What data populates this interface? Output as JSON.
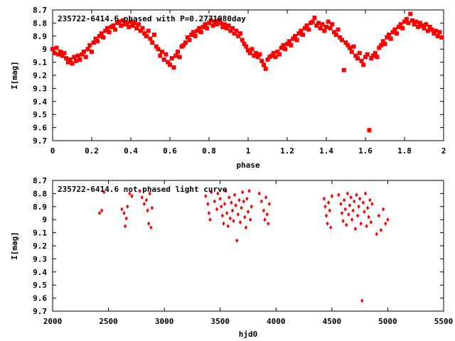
{
  "chart_data": [
    {
      "type": "scatter",
      "title": "235722-6414.6 phased with P=0.2771080day",
      "xlabel": "phase",
      "ylabel": "I[mag]",
      "xlim": [
        0,
        2
      ],
      "ylim": [
        9.7,
        8.7
      ],
      "y_inverted": true,
      "x_ticks": [
        0,
        0.2,
        0.4,
        0.6,
        0.8,
        1,
        1.2,
        1.4,
        1.6,
        1.8,
        2
      ],
      "x_tick_labels": [
        "0",
        "0.2",
        "0.4",
        "0.6",
        "0.8",
        "1",
        "1.2",
        "1.4",
        "1.6",
        "1.8",
        "2"
      ],
      "y_ticks": [
        8.7,
        8.8,
        8.9,
        9,
        9.1,
        9.2,
        9.3,
        9.4,
        9.5,
        9.6,
        9.7
      ],
      "y_tick_labels": [
        "8.7",
        "8.8",
        "8.9",
        "9",
        "9.1",
        "9.2",
        "9.3",
        "9.4",
        "9.5",
        "9.6",
        "9.7"
      ],
      "grid": false,
      "marker": "filled-square",
      "color": "#ff0000",
      "points": [
        [
          0.0,
          9.0
        ],
        [
          0.01,
          9.03
        ],
        [
          0.02,
          8.99
        ],
        [
          0.03,
          9.04
        ],
        [
          0.04,
          9.02
        ],
        [
          0.05,
          9.05
        ],
        [
          0.06,
          9.03
        ],
        [
          0.07,
          9.07
        ],
        [
          0.08,
          9.1
        ],
        [
          0.09,
          9.08
        ],
        [
          0.1,
          9.11
        ],
        [
          0.11,
          9.06
        ],
        [
          0.12,
          9.09
        ],
        [
          0.13,
          9.05
        ],
        [
          0.14,
          9.08
        ],
        [
          0.15,
          9.04
        ],
        [
          0.16,
          9.02
        ],
        [
          0.17,
          9.06
        ],
        [
          0.18,
          9.0
        ],
        [
          0.19,
          8.97
        ],
        [
          0.2,
          9.02
        ],
        [
          0.21,
          8.95
        ],
        [
          0.22,
          8.92
        ],
        [
          0.23,
          8.94
        ],
        [
          0.24,
          8.9
        ],
        [
          0.25,
          8.88
        ],
        [
          0.26,
          8.91
        ],
        [
          0.27,
          8.86
        ],
        [
          0.28,
          8.84
        ],
        [
          0.29,
          8.87
        ],
        [
          0.3,
          8.83
        ],
        [
          0.31,
          8.82
        ],
        [
          0.32,
          8.85
        ],
        [
          0.33,
          8.8
        ],
        [
          0.34,
          8.79
        ],
        [
          0.35,
          8.82
        ],
        [
          0.36,
          8.78
        ],
        [
          0.37,
          8.81
        ],
        [
          0.38,
          8.8
        ],
        [
          0.39,
          8.83
        ],
        [
          0.4,
          8.79
        ],
        [
          0.41,
          8.82
        ],
        [
          0.42,
          8.8
        ],
        [
          0.43,
          8.84
        ],
        [
          0.44,
          8.81
        ],
        [
          0.45,
          8.86
        ],
        [
          0.46,
          8.84
        ],
        [
          0.47,
          8.88
        ],
        [
          0.48,
          8.9
        ],
        [
          0.49,
          8.86
        ],
        [
          0.5,
          8.92
        ],
        [
          0.51,
          8.95
        ],
        [
          0.52,
          8.89
        ],
        [
          0.53,
          8.98
        ],
        [
          0.54,
          9.0
        ],
        [
          0.55,
          9.05
        ],
        [
          0.56,
          9.02
        ],
        [
          0.57,
          9.08
        ],
        [
          0.58,
          9.04
        ],
        [
          0.59,
          9.1
        ],
        [
          0.6,
          9.12
        ],
        [
          0.61,
          9.07
        ],
        [
          0.62,
          9.14
        ],
        [
          0.63,
          9.05
        ],
        [
          0.64,
          9.02
        ],
        [
          0.65,
          9.06
        ],
        [
          0.66,
          8.98
        ],
        [
          0.67,
          8.97
        ],
        [
          0.68,
          8.95
        ],
        [
          0.69,
          8.91
        ],
        [
          0.7,
          8.93
        ],
        [
          0.71,
          8.89
        ],
        [
          0.72,
          8.87
        ],
        [
          0.73,
          8.9
        ],
        [
          0.74,
          8.86
        ],
        [
          0.75,
          8.84
        ],
        [
          0.76,
          8.87
        ],
        [
          0.77,
          8.83
        ],
        [
          0.78,
          8.81
        ],
        [
          0.79,
          8.84
        ],
        [
          0.8,
          8.8
        ],
        [
          0.81,
          8.78
        ],
        [
          0.82,
          8.82
        ],
        [
          0.83,
          8.79
        ],
        [
          0.84,
          8.81
        ],
        [
          0.85,
          8.78
        ],
        [
          0.86,
          8.8
        ],
        [
          0.87,
          8.83
        ],
        [
          0.88,
          8.81
        ],
        [
          0.89,
          8.84
        ],
        [
          0.9,
          8.82
        ],
        [
          0.91,
          8.86
        ],
        [
          0.92,
          8.84
        ],
        [
          0.93,
          8.88
        ],
        [
          0.94,
          8.86
        ],
        [
          0.95,
          8.9
        ],
        [
          0.96,
          8.88
        ],
        [
          0.97,
          8.93
        ],
        [
          0.98,
          8.96
        ],
        [
          0.99,
          8.98
        ],
        [
          1.0,
          9.01
        ],
        [
          1.01,
          9.03
        ],
        [
          1.02,
          9.0
        ],
        [
          1.03,
          9.05
        ],
        [
          1.04,
          9.03
        ],
        [
          1.05,
          9.06
        ],
        [
          1.06,
          9.04
        ],
        [
          1.07,
          9.09
        ],
        [
          1.08,
          9.12
        ],
        [
          1.09,
          9.15
        ],
        [
          1.1,
          9.08
        ],
        [
          1.11,
          9.06
        ],
        [
          1.12,
          9.05
        ],
        [
          1.13,
          9.03
        ],
        [
          1.14,
          9.06
        ],
        [
          1.15,
          9.02
        ],
        [
          1.16,
          9.04
        ],
        [
          1.17,
          8.99
        ],
        [
          1.18,
          8.97
        ],
        [
          1.19,
          9.0
        ],
        [
          1.2,
          8.96
        ],
        [
          1.21,
          8.94
        ],
        [
          1.22,
          8.97
        ],
        [
          1.23,
          8.92
        ],
        [
          1.24,
          8.9
        ],
        [
          1.25,
          8.93
        ],
        [
          1.26,
          8.88
        ],
        [
          1.27,
          8.86
        ],
        [
          1.28,
          8.89
        ],
        [
          1.29,
          8.84
        ],
        [
          1.3,
          8.82
        ],
        [
          1.31,
          8.85
        ],
        [
          1.32,
          8.8
        ],
        [
          1.33,
          8.79
        ],
        [
          1.34,
          8.76
        ],
        [
          1.35,
          8.82
        ],
        [
          1.36,
          8.8
        ],
        [
          1.37,
          8.84
        ],
        [
          1.38,
          8.81
        ],
        [
          1.39,
          8.86
        ],
        [
          1.4,
          8.83
        ],
        [
          1.41,
          8.79
        ],
        [
          1.42,
          8.84
        ],
        [
          1.43,
          8.81
        ],
        [
          1.44,
          8.87
        ],
        [
          1.45,
          8.89
        ],
        [
          1.46,
          8.85
        ],
        [
          1.47,
          8.91
        ],
        [
          1.48,
          8.93
        ],
        [
          1.49,
          9.16
        ],
        [
          1.5,
          8.95
        ],
        [
          1.51,
          8.97
        ],
        [
          1.52,
          8.99
        ],
        [
          1.53,
          9.02
        ],
        [
          1.54,
          8.98
        ],
        [
          1.55,
          9.05
        ],
        [
          1.56,
          9.07
        ],
        [
          1.57,
          9.03
        ],
        [
          1.58,
          9.09
        ],
        [
          1.59,
          9.12
        ],
        [
          1.6,
          9.06
        ],
        [
          1.61,
          9.04
        ],
        [
          1.62,
          9.62
        ],
        [
          1.63,
          9.07
        ],
        [
          1.64,
          9.05
        ],
        [
          1.65,
          9.03
        ],
        [
          1.66,
          9.06
        ],
        [
          1.67,
          8.99
        ],
        [
          1.68,
          8.97
        ],
        [
          1.69,
          8.94
        ],
        [
          1.7,
          8.96
        ],
        [
          1.71,
          8.91
        ],
        [
          1.72,
          8.89
        ],
        [
          1.73,
          8.92
        ],
        [
          1.74,
          8.87
        ],
        [
          1.75,
          8.85
        ],
        [
          1.76,
          8.88
        ],
        [
          1.77,
          8.83
        ],
        [
          1.78,
          8.81
        ],
        [
          1.79,
          8.84
        ],
        [
          1.8,
          8.79
        ],
        [
          1.81,
          8.77
        ],
        [
          1.82,
          8.8
        ],
        [
          1.83,
          8.73
        ],
        [
          1.84,
          8.78
        ],
        [
          1.85,
          8.81
        ],
        [
          1.86,
          8.79
        ],
        [
          1.87,
          8.83
        ],
        [
          1.88,
          8.8
        ],
        [
          1.89,
          8.82
        ],
        [
          1.9,
          8.84
        ],
        [
          1.91,
          8.81
        ],
        [
          1.92,
          8.86
        ],
        [
          1.93,
          8.83
        ],
        [
          1.94,
          8.85
        ],
        [
          1.95,
          8.88
        ],
        [
          1.96,
          8.86
        ],
        [
          1.97,
          8.9
        ],
        [
          1.98,
          8.87
        ],
        [
          1.99,
          8.91
        ]
      ]
    },
    {
      "type": "scatter",
      "title": "235722-6414.6 not phased light curve",
      "xlabel": "hjd0",
      "ylabel": "I[mag]",
      "xlim": [
        2000,
        5500
      ],
      "ylim": [
        9.7,
        8.7
      ],
      "y_inverted": true,
      "x_ticks": [
        2000,
        2500,
        3000,
        3500,
        4000,
        4500,
        5000,
        5500
      ],
      "x_tick_labels": [
        "2000",
        "2500",
        "3000",
        "3500",
        "4000",
        "4500",
        "5000",
        "5500"
      ],
      "y_ticks": [
        8.7,
        8.8,
        8.9,
        9,
        9.1,
        9.2,
        9.3,
        9.4,
        9.5,
        9.6,
        9.7
      ],
      "y_tick_labels": [
        "8.7",
        "8.8",
        "8.9",
        "9",
        "9.1",
        "9.2",
        "9.3",
        "9.4",
        "9.5",
        "9.6",
        "9.7"
      ],
      "grid": false,
      "marker": "diamond",
      "color": "#ff0000",
      "points": [
        [
          2420,
          8.95
        ],
        [
          2440,
          8.93
        ],
        [
          2460,
          8.79
        ],
        [
          2620,
          8.92
        ],
        [
          2640,
          8.95
        ],
        [
          2650,
          9.05
        ],
        [
          2660,
          8.99
        ],
        [
          2670,
          8.9
        ],
        [
          2690,
          8.8
        ],
        [
          2710,
          8.82
        ],
        [
          2780,
          8.78
        ],
        [
          2800,
          8.83
        ],
        [
          2820,
          8.88
        ],
        [
          2840,
          8.85
        ],
        [
          2850,
          8.93
        ],
        [
          2860,
          9.03
        ],
        [
          2870,
          8.8
        ],
        [
          2880,
          9.06
        ],
        [
          2890,
          8.91
        ],
        [
          3370,
          8.82
        ],
        [
          3390,
          8.88
        ],
        [
          3400,
          8.95
        ],
        [
          3410,
          9.0
        ],
        [
          3420,
          8.79
        ],
        [
          3450,
          8.86
        ],
        [
          3470,
          8.92
        ],
        [
          3480,
          8.8
        ],
        [
          3500,
          8.84
        ],
        [
          3510,
          8.9
        ],
        [
          3520,
          8.97
        ],
        [
          3530,
          9.03
        ],
        [
          3540,
          8.88
        ],
        [
          3550,
          8.78
        ],
        [
          3560,
          8.95
        ],
        [
          3570,
          9.05
        ],
        [
          3580,
          8.83
        ],
        [
          3590,
          8.99
        ],
        [
          3600,
          8.87
        ],
        [
          3610,
          8.93
        ],
        [
          3620,
          9.01
        ],
        [
          3630,
          8.81
        ],
        [
          3640,
          8.89
        ],
        [
          3650,
          9.16
        ],
        [
          3660,
          8.96
        ],
        [
          3670,
          8.85
        ],
        [
          3680,
          9.02
        ],
        [
          3690,
          8.91
        ],
        [
          3700,
          8.79
        ],
        [
          3710,
          8.86
        ],
        [
          3720,
          8.98
        ],
        [
          3730,
          9.06
        ],
        [
          3740,
          8.84
        ],
        [
          3750,
          8.94
        ],
        [
          3760,
          8.78
        ],
        [
          3770,
          9.0
        ],
        [
          3780,
          8.9
        ],
        [
          3850,
          8.8
        ],
        [
          3870,
          8.86
        ],
        [
          3890,
          8.93
        ],
        [
          3900,
          9.0
        ],
        [
          3910,
          8.83
        ],
        [
          3920,
          8.96
        ],
        [
          3930,
          9.03
        ],
        [
          3940,
          8.88
        ],
        [
          4430,
          8.84
        ],
        [
          4440,
          8.9
        ],
        [
          4450,
          8.97
        ],
        [
          4460,
          9.03
        ],
        [
          4470,
          8.87
        ],
        [
          4480,
          8.93
        ],
        [
          4490,
          9.06
        ],
        [
          4500,
          8.82
        ],
        [
          4560,
          8.81
        ],
        [
          4580,
          8.88
        ],
        [
          4590,
          8.95
        ],
        [
          4600,
          9.01
        ],
        [
          4610,
          8.85
        ],
        [
          4620,
          8.92
        ],
        [
          4630,
          9.04
        ],
        [
          4640,
          8.8
        ],
        [
          4650,
          8.96
        ],
        [
          4660,
          8.89
        ],
        [
          4670,
          8.83
        ],
        [
          4680,
          9.0
        ],
        [
          4690,
          8.93
        ],
        [
          4700,
          8.86
        ],
        [
          4710,
          9.07
        ],
        [
          4720,
          8.81
        ],
        [
          4730,
          8.97
        ],
        [
          4740,
          8.9
        ],
        [
          4750,
          8.84
        ],
        [
          4760,
          9.03
        ],
        [
          4770,
          9.62
        ],
        [
          4780,
          8.87
        ],
        [
          4790,
          8.94
        ],
        [
          4800,
          8.8
        ],
        [
          4810,
          9.05
        ],
        [
          4820,
          8.91
        ],
        [
          4830,
          8.98
        ],
        [
          4840,
          8.85
        ],
        [
          4850,
          9.02
        ],
        [
          4860,
          8.88
        ],
        [
          4900,
          9.11
        ],
        [
          4920,
          8.97
        ],
        [
          4940,
          9.08
        ],
        [
          4960,
          8.92
        ],
        [
          4980,
          9.03
        ],
        [
          5000,
          9.0
        ]
      ]
    }
  ]
}
